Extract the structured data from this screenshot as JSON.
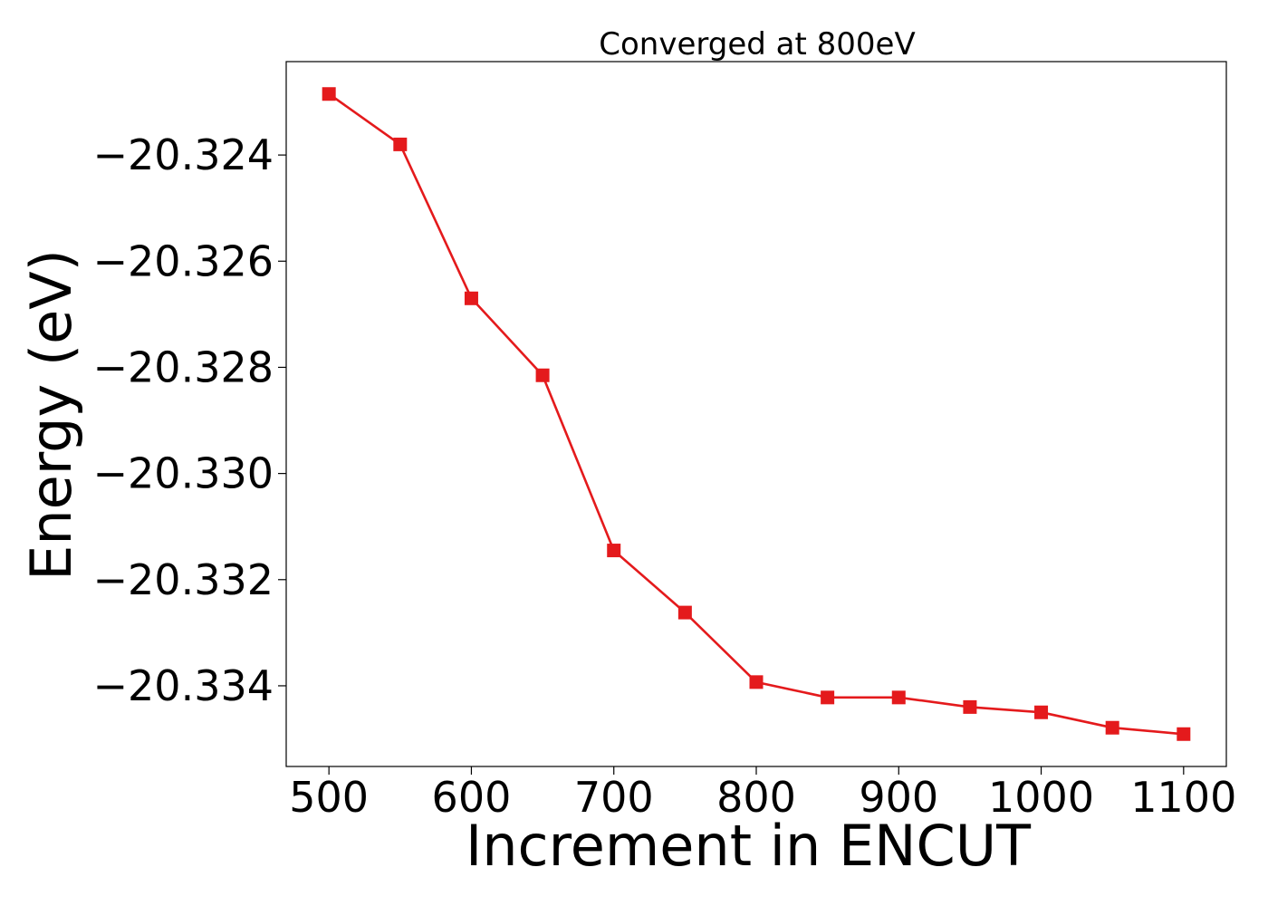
{
  "chart_data": {
    "type": "line",
    "title": "Converged at 800eV",
    "xlabel": "Increment in ENCUT",
    "ylabel": "Energy (eV)",
    "x": [
      500,
      550,
      600,
      650,
      700,
      750,
      800,
      850,
      900,
      950,
      1000,
      1050,
      1100
    ],
    "series": [
      {
        "values": [
          -20.32285,
          -20.3238,
          -20.3267,
          -20.32815,
          -20.33145,
          -20.33262,
          -20.33393,
          -20.33422,
          -20.33422,
          -20.3344,
          -20.3345,
          -20.33479,
          -20.33491
        ],
        "color": "#e41a1c",
        "marker": "square"
      }
    ],
    "xticks": [
      500,
      600,
      700,
      800,
      900,
      1000,
      1100
    ],
    "xtick_labels": [
      "500",
      "600",
      "700",
      "800",
      "900",
      "1000",
      "1100"
    ],
    "yticks": [
      -20.324,
      -20.326,
      -20.328,
      -20.33,
      -20.332,
      -20.334
    ],
    "ytick_labels": [
      "−20.324",
      "−20.326",
      "−20.328",
      "−20.330",
      "−20.332",
      "−20.334"
    ],
    "xlim": [
      470,
      1130
    ],
    "ylim": [
      -20.33552,
      -20.32224
    ],
    "grid": false,
    "legend": "none"
  }
}
